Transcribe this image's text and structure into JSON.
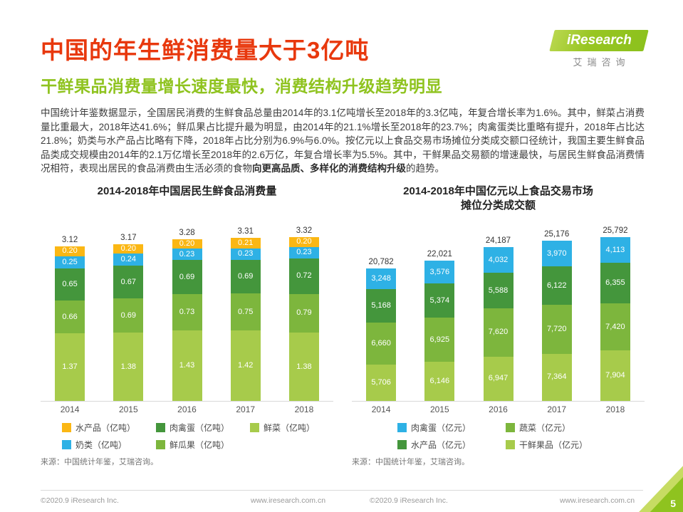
{
  "logo": {
    "brand": "iResearch",
    "brand_sub": "艾瑞咨询"
  },
  "header": {
    "title": "中国的年生鲜消费量大于3亿吨",
    "subtitle": "干鲜果品消费量增长速度最快，消费结构升级趋势明显"
  },
  "paragraph": {
    "segments": [
      {
        "text": "中国统计年鉴数据显示，全国居民消费的生鲜食品总量由2014年的3.1亿吨增长至2018年的3.3亿吨，年复合增长率为1.6%。其中，鲜菜占消费量比重最大，2018年达41.6%；鲜瓜果占比提升最为明显，由2014年的21.1%增长至2018年的23.7%；肉禽蛋类比重略有提升，2018年占比达21.8%；奶类与水产品占比略有下降，2018年占比分别为6.9%与6.0%。按亿元以上食品交易市场摊位分类成交额口径统计，我国主要生鲜食品品类成交规模由2014年的2.1万亿增长至2018年的2.6万亿，年复合增长率为5.5%。其中，干鲜果品交易额的增速最快，与居民生鲜食品消费情况相符，表现出居民的食品消费由生活必须的食物",
        "bold": false
      },
      {
        "text": "向更高品质、多样化的消费结构升级",
        "bold": true
      },
      {
        "text": "的趋势。",
        "bold": false
      }
    ]
  },
  "chart_data": [
    {
      "type": "bar",
      "stacked": true,
      "title_lines": [
        "2014-2018年中国居民生鲜食品消费量"
      ],
      "categories": [
        "2014",
        "2015",
        "2016",
        "2017",
        "2018"
      ],
      "totals": [
        "3.12",
        "3.17",
        "3.28",
        "3.31",
        "3.32"
      ],
      "ylim": [
        0,
        3.32
      ],
      "grid": false,
      "legend_position": "bottom",
      "series": [
        {
          "key": "fresh-vegetables",
          "name": "鲜菜",
          "unit": "亿吨",
          "color": "#a7cb4b",
          "values": [
            1.37,
            1.38,
            1.43,
            1.42,
            1.38
          ],
          "labels": [
            "1.37",
            "1.38",
            "1.43",
            "1.42",
            "1.38"
          ]
        },
        {
          "key": "fresh-fruit",
          "name": "鲜瓜果",
          "unit": "亿吨",
          "color": "#7db63d",
          "values": [
            0.66,
            0.69,
            0.73,
            0.75,
            0.79
          ],
          "labels": [
            "0.66",
            "0.69",
            "0.73",
            "0.75",
            "0.79"
          ]
        },
        {
          "key": "meat-poultry-eggs",
          "name": "肉禽蛋",
          "unit": "亿吨",
          "color": "#44963c",
          "values": [
            0.65,
            0.67,
            0.69,
            0.69,
            0.72
          ],
          "labels": [
            "0.65",
            "0.67",
            "0.69",
            "0.69",
            "0.72"
          ]
        },
        {
          "key": "dairy",
          "name": "奶类",
          "unit": "亿吨",
          "color": "#2eb1e5",
          "values": [
            0.25,
            0.24,
            0.23,
            0.23,
            0.23
          ],
          "labels": [
            "0.25",
            "0.24",
            "0.23",
            "0.23",
            "0.23"
          ]
        },
        {
          "key": "aquatic-products",
          "name": "水产品",
          "unit": "亿吨",
          "color": "#fbb714",
          "values": [
            0.2,
            0.2,
            0.2,
            0.21,
            0.2
          ],
          "labels": [
            "0.20",
            "0.20",
            "0.20",
            "0.21",
            "0.20"
          ]
        }
      ],
      "legend_rows": [
        [
          {
            "label": "水产品（亿吨）",
            "color": "#fbb714"
          },
          {
            "label": "肉禽蛋（亿吨）",
            "color": "#44963c"
          },
          {
            "label": "鲜菜（亿吨）",
            "color": "#a7cb4b"
          }
        ],
        [
          {
            "label": "奶类（亿吨）",
            "color": "#2eb1e5"
          },
          {
            "label": "鲜瓜果（亿吨）",
            "color": "#7db63d"
          }
        ]
      ],
      "source": "来源：中国统计年鉴，艾瑞咨询。"
    },
    {
      "type": "bar",
      "stacked": true,
      "title_lines": [
        "2014-2018年中国亿元以上食品交易市场",
        "摊位分类成交额"
      ],
      "categories": [
        "2014",
        "2015",
        "2016",
        "2017",
        "2018"
      ],
      "totals": [
        "20,782",
        "22,021",
        "24,187",
        "25,176",
        "25,792"
      ],
      "ylim": [
        0,
        25792
      ],
      "grid": false,
      "legend_position": "bottom",
      "series": [
        {
          "key": "dried-fresh-fruits",
          "name": "干鲜果品",
          "unit": "亿元",
          "color": "#a7cb4b",
          "values": [
            5706,
            6146,
            6947,
            7364,
            7904
          ],
          "labels": [
            "5,706",
            "6,146",
            "6,947",
            "7,364",
            "7,904"
          ]
        },
        {
          "key": "vegetables",
          "name": "蔬菜",
          "unit": "亿元",
          "color": "#7db63d",
          "values": [
            6660,
            6925,
            7620,
            7720,
            7420
          ],
          "labels": [
            "6,660",
            "6,925",
            "7,620",
            "7,720",
            "7,420"
          ]
        },
        {
          "key": "aquatic-products",
          "name": "水产品",
          "unit": "亿元",
          "color": "#44963c",
          "values": [
            5168,
            5374,
            5588,
            6122,
            6355
          ],
          "labels": [
            "5,168",
            "5,374",
            "5,588",
            "6,122",
            "6,355"
          ]
        },
        {
          "key": "meat-poultry-eggs",
          "name": "肉禽蛋",
          "unit": "亿元",
          "color": "#2eb1e5",
          "values": [
            3248,
            3576,
            4032,
            3970,
            4113
          ],
          "labels": [
            "3,248",
            "3,576",
            "4,032",
            "3,970",
            "4,113"
          ]
        }
      ],
      "legend_rows": [
        [
          {
            "label": "肉禽蛋（亿元）",
            "color": "#2eb1e5"
          },
          {
            "label": "蔬菜（亿元）",
            "color": "#7db63d"
          }
        ],
        [
          {
            "label": "水产品（亿元）",
            "color": "#44963c"
          },
          {
            "label": "干鲜果品（亿元）",
            "color": "#a7cb4b"
          }
        ]
      ],
      "source": "来源：中国统计年鉴，艾瑞咨询。"
    }
  ],
  "footer": {
    "copyright_left": "©2020.9 iResearch Inc.",
    "url_left": "www.iresearch.com.cn",
    "copyright_right": "©2020.9 iResearch Inc.",
    "url_right": "www.iresearch.com.cn",
    "page_number": "5"
  },
  "colors": {
    "title_red": "#e8380d",
    "brand_green": "#8fc31f",
    "light_green": "#a7cb4b",
    "mid_green": "#7db63d",
    "dark_green": "#44963c",
    "cyan": "#2eb1e5",
    "yellow": "#fbb714"
  }
}
